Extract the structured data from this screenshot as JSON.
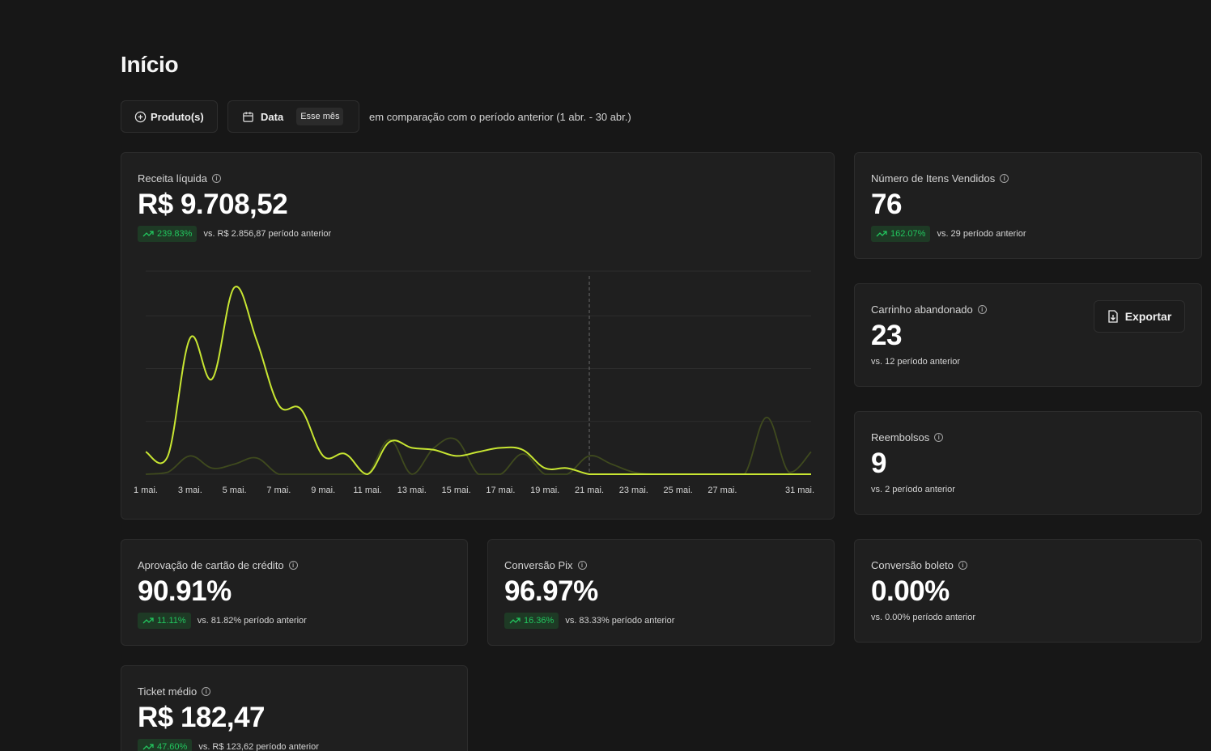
{
  "page": {
    "title": "Início"
  },
  "toolbar": {
    "products_label": "Produto(s)",
    "date_label": "Data",
    "date_chip": "Esse mês",
    "comparison": "em comparação com o período anterior (1 abr. - 30 abr.)"
  },
  "cards": {
    "revenue": {
      "label": "Receita líquida",
      "value": "R$ 9.708,52",
      "change": "239.83%",
      "previous": "vs. R$ 2.856,87 período anterior"
    },
    "items_sold": {
      "label": "Número de Itens Vendidos",
      "value": "76",
      "change": "162.07%",
      "previous": "vs. 29 período anterior"
    },
    "abandoned_cart": {
      "label": "Carrinho abandonado",
      "value": "23",
      "previous": "vs. 12 período anterior",
      "export_label": "Exportar"
    },
    "refunds": {
      "label": "Reembolsos",
      "value": "9",
      "previous": "vs. 2 período anterior"
    },
    "card_approval": {
      "label": "Aprovação de cartão de crédito",
      "value": "90.91%",
      "change": "11.11%",
      "previous": "vs. 81.82% período anterior"
    },
    "pix_conversion": {
      "label": "Conversão Pix",
      "value": "96.97%",
      "change": "16.36%",
      "previous": "vs. 83.33% período anterior"
    },
    "boleto_conversion": {
      "label": "Conversão boleto",
      "value": "0.00%",
      "previous": "vs. 0.00% período anterior"
    },
    "avg_ticket": {
      "label": "Ticket médio",
      "value": "R$ 182,47",
      "change": "47.60%",
      "previous": "vs. R$ 123,62 período anterior"
    }
  },
  "colors": {
    "current": "#c8e632",
    "previous": "#3f4a1e",
    "positive": "#22c55e",
    "badge_bg": "#1e3a25"
  },
  "chart_data": {
    "type": "line",
    "x_ticks": [
      "1 mai.",
      "3 mai.",
      "5 mai.",
      "7 mai.",
      "9 mai.",
      "11 mai.",
      "13 mai.",
      "15 mai.",
      "17 mai.",
      "19 mai.",
      "21 mai.",
      "23 mai.",
      "25 mai.",
      "27 mai.",
      "31 mai."
    ],
    "x": [
      1,
      2,
      3,
      4,
      5,
      6,
      7,
      8,
      9,
      10,
      11,
      12,
      13,
      14,
      15,
      16,
      17,
      18,
      19,
      20,
      21,
      22,
      23,
      24,
      25,
      26,
      27,
      28,
      29,
      30,
      31
    ],
    "today_marker": 21,
    "ylim": [
      0,
      100
    ],
    "grid": true,
    "series": [
      {
        "values": [
          11,
          9,
          67,
          47,
          92,
          66,
          34,
          32,
          9,
          10,
          0,
          16,
          13,
          12,
          9,
          11,
          13,
          12,
          3,
          3,
          0,
          0,
          0,
          0,
          0,
          0,
          0,
          0,
          0,
          0,
          0
        ]
      },
      {
        "values": [
          0,
          1,
          9,
          3,
          5,
          8,
          0,
          0,
          0,
          0,
          0,
          17,
          0,
          13,
          17,
          0,
          0,
          10,
          0,
          0,
          9,
          5,
          1,
          0,
          0,
          0,
          0,
          0,
          28,
          1,
          11
        ]
      }
    ]
  }
}
